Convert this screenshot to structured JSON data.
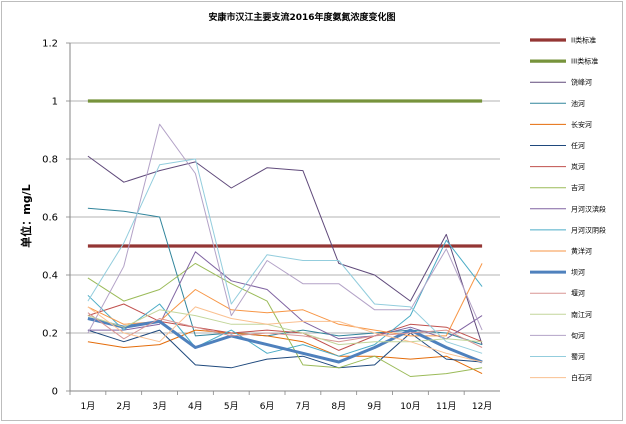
{
  "chart_data": {
    "type": "line",
    "title": "安康市汉江主要支流2016年度氨氮浓度变化图",
    "ylabel": "单位：mg/L",
    "xlabel": "",
    "categories": [
      "1月",
      "2月",
      "3月",
      "4月",
      "5月",
      "6月",
      "7月",
      "8月",
      "9月",
      "10月",
      "11月",
      "12月"
    ],
    "ylim": [
      0,
      1.2
    ],
    "yticks": [
      "0",
      "0.2",
      "0.4",
      "0.6",
      "0.8",
      "1",
      "1.2"
    ],
    "grid": true,
    "legend_position": "right",
    "series": [
      {
        "name": "II类标准",
        "color": "#943634",
        "width": 3.2,
        "values": [
          0.5,
          0.5,
          0.5,
          0.5,
          0.5,
          0.5,
          0.5,
          0.5,
          0.5,
          0.5,
          0.5,
          0.5
        ]
      },
      {
        "name": "III类标准",
        "color": "#77933c",
        "width": 3.2,
        "values": [
          1,
          1,
          1,
          1,
          1,
          1,
          1,
          1,
          1,
          1,
          1,
          1
        ]
      },
      {
        "name": "饶峰河",
        "color": "#604a7b",
        "width": 1,
        "values": [
          0.81,
          0.72,
          0.76,
          0.79,
          0.7,
          0.77,
          0.76,
          0.44,
          0.4,
          0.31,
          0.54,
          0.16
        ]
      },
      {
        "name": "池河",
        "color": "#31859c",
        "width": 1,
        "values": [
          0.63,
          0.62,
          0.6,
          0.19,
          0.2,
          0.19,
          0.21,
          0.19,
          0.2,
          0.21,
          0.2,
          0.16
        ]
      },
      {
        "name": "长安河",
        "color": "#e46c0a",
        "width": 1,
        "values": [
          0.17,
          0.15,
          0.16,
          0.21,
          0.2,
          0.19,
          0.17,
          0.12,
          0.12,
          0.11,
          0.12,
          0.06
        ]
      },
      {
        "name": "任河",
        "color": "#1f497d",
        "width": 1,
        "values": [
          0.21,
          0.17,
          0.21,
          0.09,
          0.08,
          0.11,
          0.12,
          0.08,
          0.09,
          0.2,
          0.11,
          0.1
        ]
      },
      {
        "name": "岚河",
        "color": "#c0504d",
        "width": 1,
        "values": [
          0.26,
          0.3,
          0.24,
          0.22,
          0.2,
          0.21,
          0.2,
          0.14,
          0.19,
          0.23,
          0.22,
          0.17
        ]
      },
      {
        "name": "吉河",
        "color": "#9bbb59",
        "width": 1,
        "values": [
          0.39,
          0.31,
          0.35,
          0.44,
          0.37,
          0.31,
          0.09,
          0.08,
          0.12,
          0.05,
          0.06,
          0.08
        ]
      },
      {
        "name": "月河汉滨段",
        "color": "#8064a2",
        "width": 1,
        "values": [
          0.21,
          0.21,
          0.23,
          0.48,
          0.38,
          0.35,
          0.24,
          0.18,
          0.19,
          0.22,
          0.18,
          0.26
        ]
      },
      {
        "name": "月河汉阴段",
        "color": "#4bacc6",
        "width": 1,
        "values": [
          0.33,
          0.21,
          0.3,
          0.15,
          0.21,
          0.13,
          0.16,
          0.12,
          0.16,
          0.26,
          0.52,
          0.36
        ]
      },
      {
        "name": "黄洋河",
        "color": "#f79646",
        "width": 1,
        "values": [
          0.29,
          0.23,
          0.24,
          0.35,
          0.28,
          0.27,
          0.28,
          0.23,
          0.21,
          0.19,
          0.19,
          0.44
        ]
      },
      {
        "name": "坝河",
        "color": "#4f81bd",
        "width": 3,
        "values": [
          0.25,
          0.22,
          0.24,
          0.15,
          0.19,
          0.16,
          0.13,
          0.1,
          0.15,
          0.21,
          0.15,
          0.1
        ]
      },
      {
        "name": "堰河",
        "color": "#d99694",
        "width": 1,
        "values": [
          0.27,
          0.18,
          0.25,
          0.22,
          0.19,
          0.2,
          0.19,
          0.17,
          0.19,
          0.2,
          0.21,
          0.15
        ]
      },
      {
        "name": "南江河",
        "color": "#c3d69b",
        "width": 1,
        "values": [
          0.26,
          0.22,
          0.28,
          0.26,
          0.23,
          0.23,
          0.2,
          0.16,
          0.17,
          0.17,
          0.18,
          0.17
        ]
      },
      {
        "name": "旬河",
        "color": "#b3a2c7",
        "width": 1,
        "values": [
          0.2,
          0.43,
          0.92,
          0.75,
          0.26,
          0.45,
          0.37,
          0.37,
          0.28,
          0.28,
          0.49,
          0.21
        ]
      },
      {
        "name": "蜀河",
        "color": "#93cddd",
        "width": 1,
        "values": [
          0.31,
          0.51,
          0.78,
          0.8,
          0.3,
          0.47,
          0.45,
          0.45,
          0.3,
          0.29,
          0.17,
          0.13
        ]
      },
      {
        "name": "白石河",
        "color": "#fac090",
        "width": 1,
        "values": [
          0.29,
          0.2,
          0.17,
          0.29,
          0.25,
          0.23,
          0.24,
          0.24,
          0.2,
          0.17,
          0.13,
          0.1
        ]
      }
    ]
  }
}
